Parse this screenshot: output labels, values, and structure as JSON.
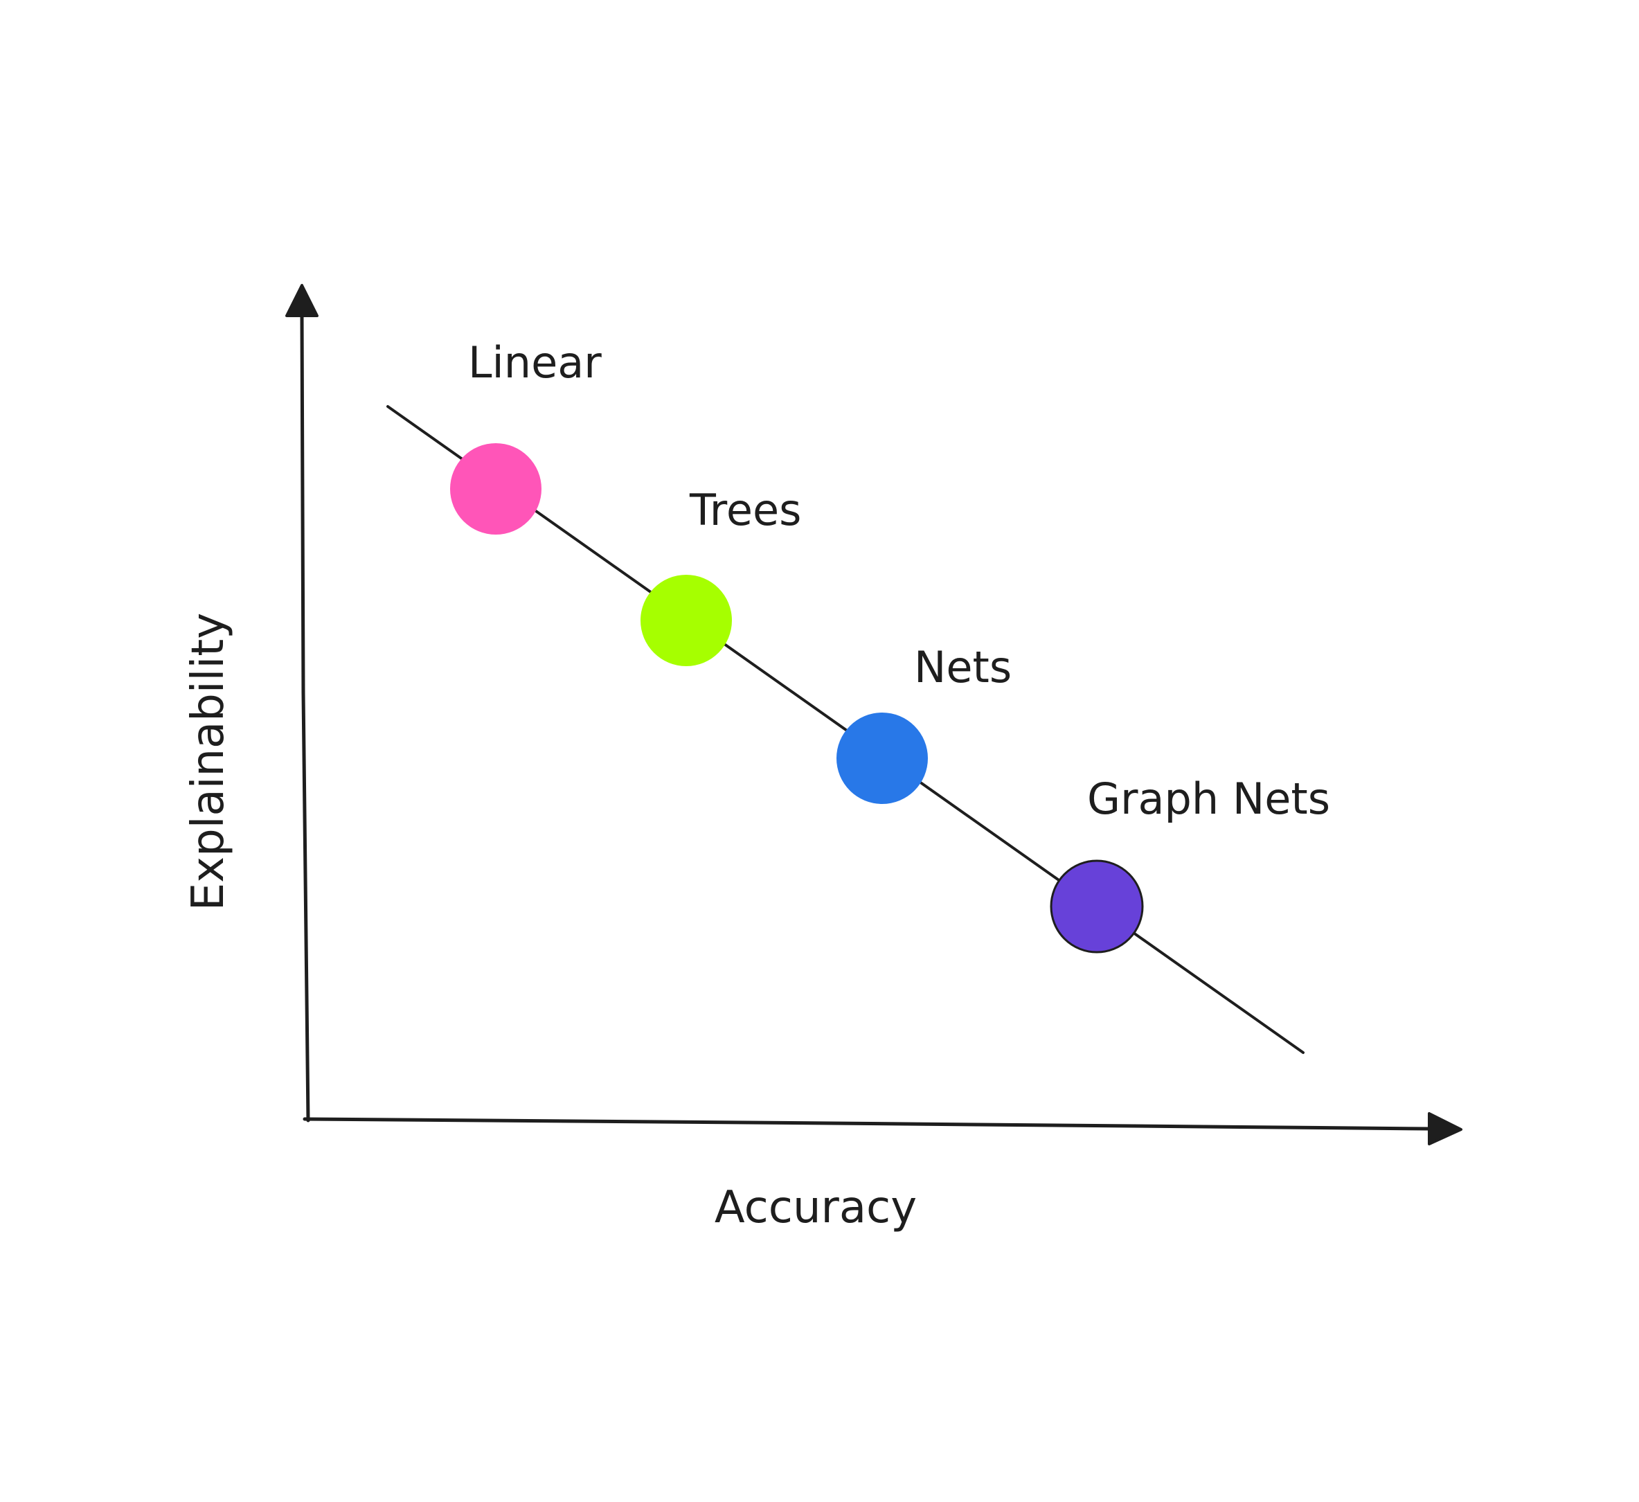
{
  "diagram": {
    "x_axis_label": "Accuracy",
    "y_axis_label": "Explainability",
    "points": [
      {
        "name": "Linear",
        "color": "#ff55b8"
      },
      {
        "name": "Trees",
        "color": "#a6ff00"
      },
      {
        "name": "Nets",
        "color": "#2878e8"
      },
      {
        "name": "Graph Nets",
        "color": "#6741d9"
      }
    ],
    "stroke_color": "#1e1e1e"
  }
}
